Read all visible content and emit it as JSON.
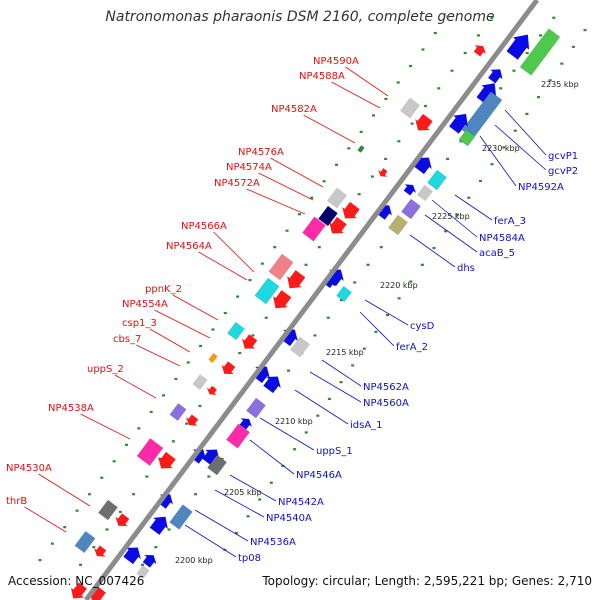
{
  "title": "Natronomonas pharaonis DSM 2160, complete genome",
  "footer": {
    "accession": "Accession: NC_007426",
    "topology": "Topology: circular; Length: 2,595,221 bp; Genes: 2,710"
  },
  "colors": {
    "backbone": "#8a8a8a",
    "cds": "#0a0ae6",
    "rna": "#ff1a1a",
    "grey": "#c8c8c8",
    "cyan": "#20d8e0",
    "green": "#4fc84f",
    "steel": "#4f86c0",
    "magenta": "#ff2aa8",
    "violet": "#8b6ee0",
    "olive": "#b8b070",
    "darkgrey": "#6e6e6e",
    "salmon": "#f07f86",
    "orange": "#ff9a00",
    "navy": "#000070",
    "reverse_label": "#e01010",
    "forward_label": "#1010cc",
    "dot": "#2f8a2f"
  },
  "tick_labels": [
    "2235 kbp",
    "2230 kbp",
    "2225 kbp",
    "2220 kbp",
    "2215 kbp",
    "2210 kbp",
    "2205 kbp",
    "2200 kbp"
  ],
  "reverse_labels": [
    "NP4590A",
    "NP4588A",
    "NP4582A",
    "NP4576A",
    "NP4574A",
    "NP4572A",
    "NP4566A",
    "NP4564A",
    "ppnK_2",
    "NP4554A",
    "csp1_3",
    "cbs_7",
    "uppS_2",
    "NP4538A",
    "NP4530A",
    "thrB"
  ],
  "forward_labels": [
    "gcvP1",
    "gcvP2",
    "NP4592A",
    "ferA_3",
    "NP4584A",
    "acaB_5",
    "dhs",
    "cysD",
    "ferA_2",
    "NP4562A",
    "NP4560A",
    "idsA_1",
    "uppS_1",
    "NP4546A",
    "NP4542A",
    "NP4540A",
    "NP4536A",
    "tp08"
  ]
}
